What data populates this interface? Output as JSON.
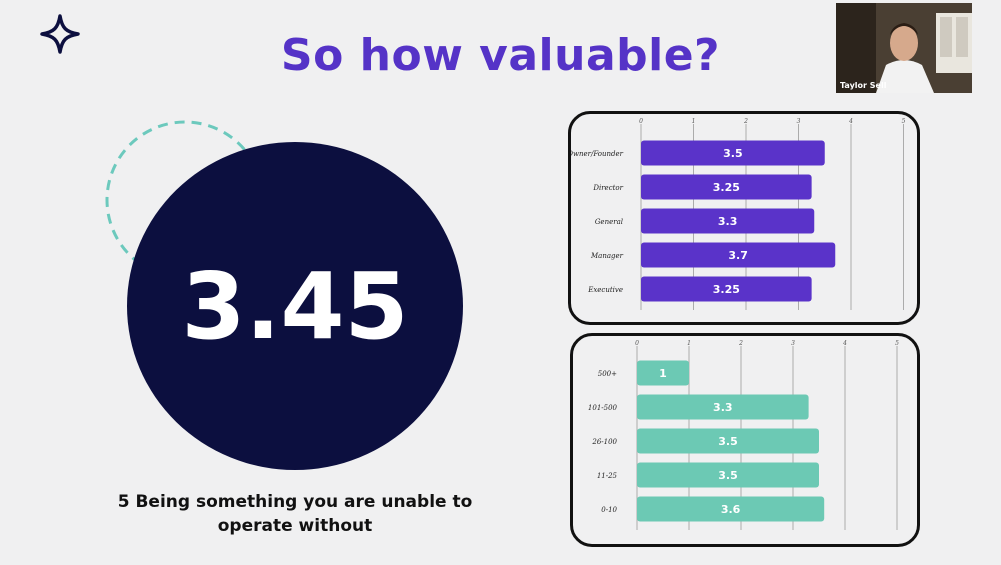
{
  "slide": {
    "title": "So how valuable?",
    "big_value": "3.45",
    "caption_line1": "5 Being something you are unable to",
    "caption_line2": "operate without"
  },
  "colors": {
    "title": "#5533c7",
    "circle": "#0c0f3f",
    "accent_dashed": "#6cc9bd",
    "role_bar": "#5a33c9",
    "size_bar": "#6cc9b4"
  },
  "participant": {
    "name": "Taylor Sell"
  },
  "chart_data": [
    {
      "type": "bar",
      "orientation": "horizontal",
      "categories": [
        "Owner/Founder",
        "Director",
        "General",
        "Manager",
        "Executive"
      ],
      "values": [
        3.5,
        3.25,
        3.3,
        3.7,
        3.25
      ],
      "value_labels": [
        "3.5",
        "3.25",
        "3.3",
        "3.7",
        "3.25"
      ],
      "xlim": [
        0,
        5
      ],
      "ticks": [
        "0",
        "1",
        "2",
        "3",
        "4",
        "5"
      ],
      "grid": true
    },
    {
      "type": "bar",
      "orientation": "horizontal",
      "categories": [
        "500+",
        "101-500",
        "26-100",
        "11-25",
        "0-10"
      ],
      "values": [
        1,
        3.3,
        3.5,
        3.5,
        3.6
      ],
      "value_labels": [
        "1",
        "3.3",
        "3.5",
        "3.5",
        "3.6"
      ],
      "xlim": [
        0,
        5
      ],
      "ticks": [
        "0",
        "1",
        "2",
        "3",
        "4",
        "5"
      ],
      "grid": true
    }
  ]
}
